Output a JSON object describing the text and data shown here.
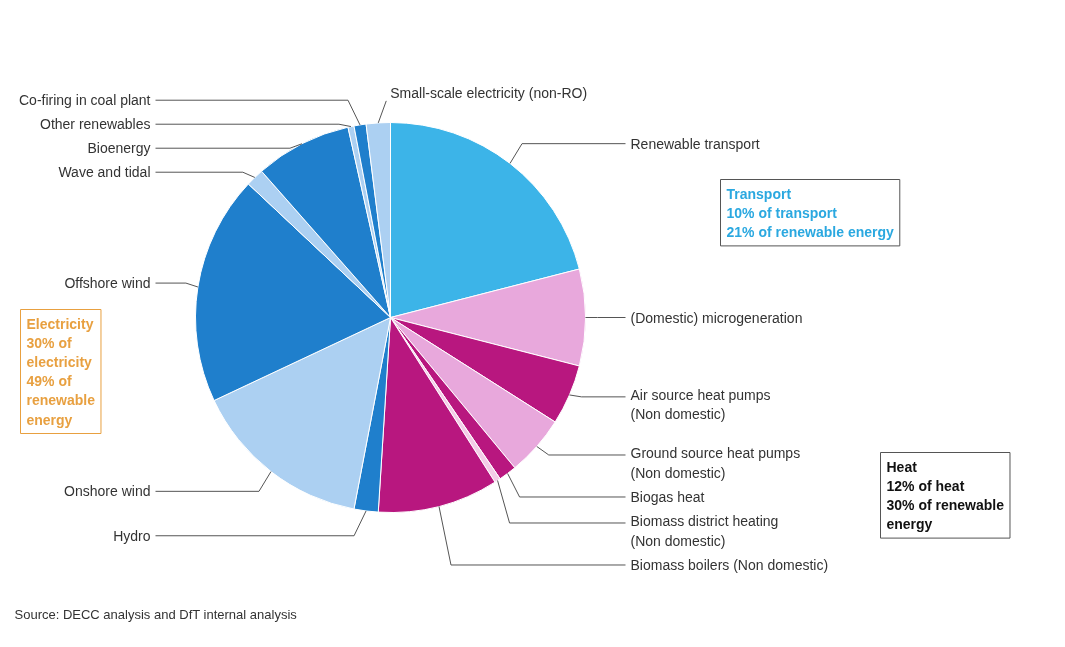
{
  "chart_data": {
    "type": "pie",
    "categories": [
      "Renewable transport",
      "(Domestic) microgeneration",
      "Air source heat pumps\n(Non domestic)",
      "Ground source heat pumps\n(Non domestic)",
      "Biogas heat",
      "Biomass district heating\n(Non domestic)",
      "Biomass boilers (Non domestic)",
      "Hydro",
      "Onshore wind",
      "Offshore wind",
      "Wave and tidal",
      "Bioenergy",
      "Other renewables",
      "Co-firing in coal plant",
      "Small-scale electricity (non-RO)"
    ],
    "values": [
      21,
      8,
      5,
      5,
      1.5,
      0.5,
      10,
      2,
      15,
      19,
      1.5,
      8,
      0.5,
      1,
      2
    ],
    "colors": [
      "#3cb4e8",
      "#e8a8dc",
      "#b8177f",
      "#e8a8dc",
      "#b8177f",
      "#f4cce8",
      "#b8177f",
      "#1f7fcc",
      "#acd0f2",
      "#1f7fcc",
      "#acd0f2",
      "#1f7fcc",
      "#acd0f2",
      "#1f7fcc",
      "#acd0f2"
    ],
    "annotations": [
      "Transport\n10% of transport\n21% of renewable energy",
      "Heat\n12% of heat\n30% of renewable\nenergy",
      "Electricity\n30% of\nelectricity\n49% of\nrenewable\nenergy",
      "Source: DECC analysis and DfT internal analysis"
    ],
    "legend": false
  }
}
